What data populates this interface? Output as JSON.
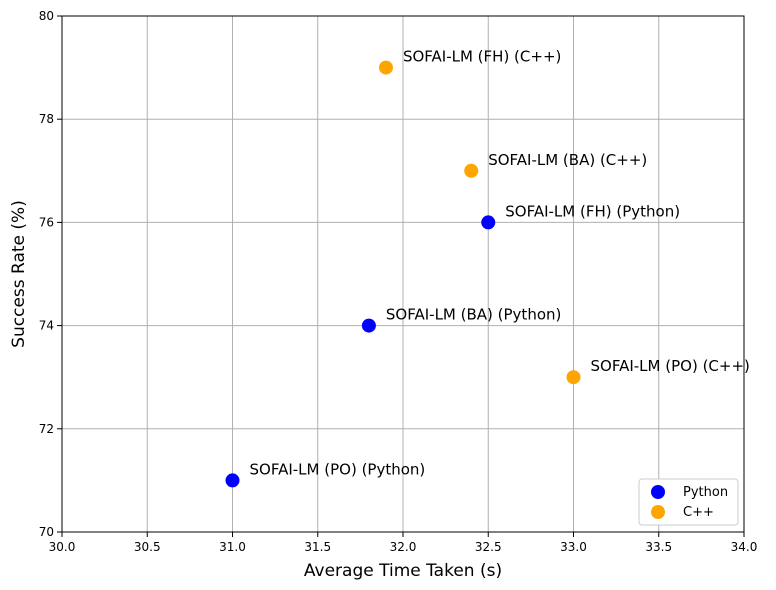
{
  "chart_data": {
    "type": "scatter",
    "title": "",
    "xlabel": "Average Time Taken (s)",
    "ylabel": "Success Rate (%)",
    "xlim": [
      30.0,
      34.0
    ],
    "ylim": [
      70,
      80
    ],
    "xticks": [
      "30.0",
      "30.5",
      "31.0",
      "31.5",
      "32.0",
      "32.5",
      "33.0",
      "33.5",
      "34.0"
    ],
    "yticks": [
      "70",
      "72",
      "74",
      "76",
      "78",
      "80"
    ],
    "grid": true,
    "legend_position": "bottom-right",
    "series": [
      {
        "name": "Python",
        "color": "#0000ff",
        "points": [
          {
            "label": "SOFAI-LM (PO) (Python)",
            "x": 31.0,
            "y": 71
          },
          {
            "label": "SOFAI-LM (BA) (Python)",
            "x": 31.8,
            "y": 74
          },
          {
            "label": "SOFAI-LM (FH) (Python)",
            "x": 32.5,
            "y": 76
          }
        ]
      },
      {
        "name": "C++",
        "color": "#ffa500",
        "points": [
          {
            "label": "SOFAI-LM (PO) (C++)",
            "x": 33.0,
            "y": 73
          },
          {
            "label": "SOFAI-LM (BA) (C++)",
            "x": 32.4,
            "y": 77
          },
          {
            "label": "SOFAI-LM (FH) (C++)",
            "x": 31.9,
            "y": 79
          }
        ]
      }
    ]
  }
}
